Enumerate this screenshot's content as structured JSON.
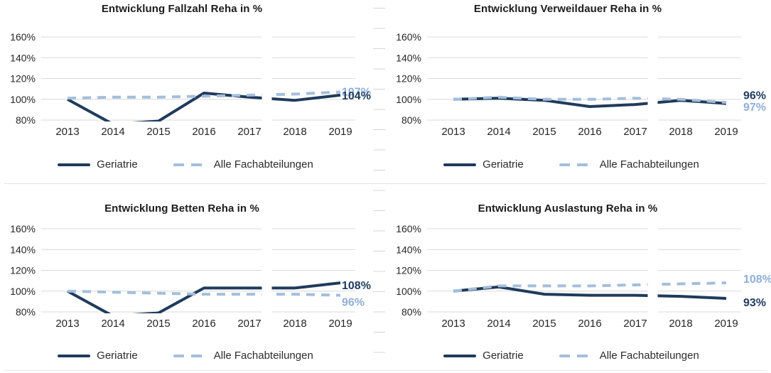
{
  "colors": {
    "geriatrie_line": "#1F3B5C",
    "alle_line": "#A4BEDC",
    "geriatrie_label": "#1F3B5C",
    "alle_label": "#8FAFD8",
    "gridline": "#D9D9D9",
    "axis_text": "#262626",
    "title_text": "#1c1c1c"
  },
  "chart_data": [
    {
      "type": "line",
      "title": "Entwicklung Fallzahl Reha in %",
      "x": [
        2013,
        2014,
        2015,
        2016,
        2017,
        2018,
        2019
      ],
      "ylim": [
        80,
        160
      ],
      "y_ticks": [
        160,
        140,
        120,
        100,
        80
      ],
      "y_tick_labels": [
        "160%",
        "140%",
        "120%",
        "100%",
        "80%"
      ],
      "grid": true,
      "legend_position": "bottom",
      "series": [
        {
          "name": "Geriatrie",
          "style": "solid",
          "color": "#1F3B5C",
          "label_color": "#1F3B5C",
          "values": [
            100,
            76,
            79,
            106,
            102,
            99,
            104
          ]
        },
        {
          "name": "Alle Fachabteilungen",
          "style": "dashed",
          "color": "#A4BEDC",
          "label_color": "#8FAFD8",
          "values": [
            101,
            102,
            102,
            103,
            104,
            105,
            107
          ]
        }
      ],
      "end_labels": [
        {
          "text": "107%",
          "series": 1,
          "value": 107,
          "dy": 0
        },
        {
          "text": "104%",
          "series": 0,
          "value": 104,
          "dy": 1
        }
      ]
    },
    {
      "type": "line",
      "title": "Entwicklung Verweildauer Reha in %",
      "x": [
        2013,
        2014,
        2015,
        2016,
        2017,
        2018,
        2019
      ],
      "ylim": [
        80,
        160
      ],
      "y_ticks": [
        160,
        140,
        120,
        100,
        80
      ],
      "y_tick_labels": [
        "160%",
        "140%",
        "120%",
        "100%",
        "80%"
      ],
      "grid": true,
      "legend_position": "bottom",
      "series": [
        {
          "name": "Geriatrie",
          "style": "solid",
          "color": "#1F3B5C",
          "label_color": "#1F3B5C",
          "values": [
            100,
            101,
            99,
            93,
            95,
            99,
            96
          ]
        },
        {
          "name": "Alle Fachabteilungen",
          "style": "dashed",
          "color": "#A4BEDC",
          "label_color": "#8FAFD8",
          "values": [
            100,
            102,
            100,
            100,
            101,
            100,
            97
          ]
        }
      ],
      "end_labels": [
        {
          "text": "96%",
          "series": 0,
          "value": 96,
          "dy": -11
        },
        {
          "text": "97%",
          "series": 1,
          "value": 97,
          "dy": 7
        }
      ]
    },
    {
      "type": "line",
      "title": "Entwicklung Betten Reha in %",
      "x": [
        2013,
        2014,
        2015,
        2016,
        2017,
        2018,
        2019
      ],
      "ylim": [
        80,
        160
      ],
      "y_ticks": [
        160,
        140,
        120,
        100,
        80
      ],
      "y_tick_labels": [
        "160%",
        "140%",
        "120%",
        "100%",
        "80%"
      ],
      "grid": true,
      "legend_position": "bottom",
      "series": [
        {
          "name": "Geriatrie",
          "style": "solid",
          "color": "#1F3B5C",
          "label_color": "#1F3B5C",
          "values": [
            100,
            76,
            79,
            103,
            103,
            103,
            108
          ]
        },
        {
          "name": "Alle Fachabteilungen",
          "style": "dashed",
          "color": "#A4BEDC",
          "label_color": "#8FAFD8",
          "values": [
            100,
            99,
            98,
            97,
            97,
            97,
            96
          ]
        }
      ],
      "end_labels": [
        {
          "text": "108%",
          "series": 0,
          "value": 108,
          "dy": 4
        },
        {
          "text": "96%",
          "series": 1,
          "value": 96,
          "dy": 10
        }
      ]
    },
    {
      "type": "line",
      "title": "Entwicklung Auslastung Reha in %",
      "x": [
        2013,
        2014,
        2015,
        2016,
        2017,
        2018,
        2019
      ],
      "ylim": [
        80,
        160
      ],
      "y_ticks": [
        160,
        140,
        120,
        100,
        80
      ],
      "y_tick_labels": [
        "160%",
        "140%",
        "120%",
        "100%",
        "80%"
      ],
      "grid": true,
      "legend_position": "bottom",
      "series": [
        {
          "name": "Geriatrie",
          "style": "solid",
          "color": "#1F3B5C",
          "label_color": "#1F3B5C",
          "values": [
            100,
            104,
            97,
            96,
            96,
            95,
            93
          ]
        },
        {
          "name": "Alle Fachabteilungen",
          "style": "dashed",
          "color": "#A4BEDC",
          "label_color": "#8FAFD8",
          "values": [
            100,
            105,
            105,
            105,
            106,
            107,
            108
          ]
        }
      ],
      "end_labels": [
        {
          "text": "108%",
          "series": 1,
          "value": 108,
          "dy": -5
        },
        {
          "text": "93%",
          "series": 0,
          "value": 93,
          "dy": 6
        }
      ]
    }
  ]
}
